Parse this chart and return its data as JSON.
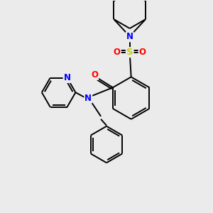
{
  "bg_color": "#ebebeb",
  "bond_color": "#000000",
  "bond_width": 1.4,
  "atom_colors": {
    "N": "#0000ff",
    "O": "#ff0000",
    "S": "#cccc00",
    "C": "#000000"
  },
  "font_size": 8.5,
  "fig_size": [
    3.0,
    3.0
  ],
  "dpi": 100,
  "scale": 1.0
}
